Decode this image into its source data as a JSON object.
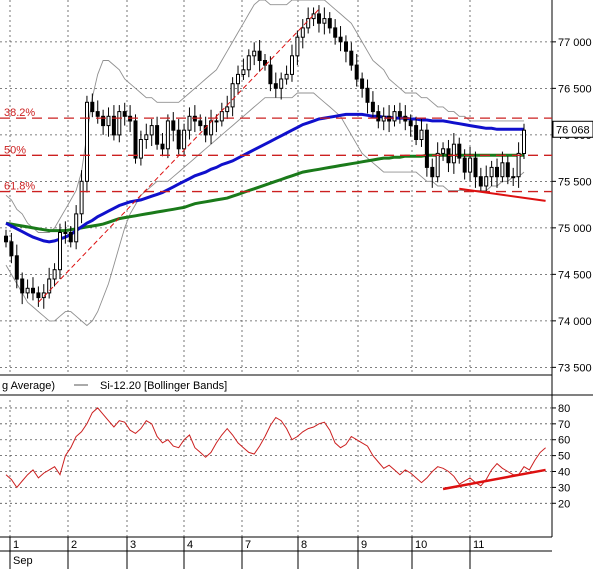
{
  "colors": {
    "price_bars": "#000000",
    "ma_short": "#1010cc",
    "ma_long": "#1a7a1a",
    "bollinger": "#909090",
    "fib_lines": "#cc2020",
    "rsi_line": "#cc2020",
    "trendlines": "#dd1010",
    "grid": "#555555",
    "last_price_box": "#ffffff"
  },
  "legend": [
    {
      "label": "g Average)",
      "style": "none"
    },
    {
      "label": "Si-12.20 [Bollinger Bands]",
      "style": "line"
    }
  ],
  "last_price_label": "76 068",
  "fib_labels": [
    {
      "label": "38.2%",
      "level": 76180
    },
    {
      "label": "50%",
      "level": 75780
    },
    {
      "label": "61.8%",
      "level": 75390
    }
  ],
  "x_axis": {
    "day_labels": [
      "1",
      "2",
      "3",
      "4",
      "7",
      "8",
      "9",
      "10",
      "11"
    ],
    "month_label": "Sep"
  },
  "chart_data": [
    {
      "type": "candlestick",
      "title": "",
      "series_name": "Si-12.20",
      "ylim": [
        73450,
        77450
      ],
      "y_ticks": [
        {
          "label": "77 000",
          "value": 77000
        },
        {
          "label": "76 500",
          "value": 76500
        },
        {
          "label": "76 000",
          "value": 76000
        },
        {
          "label": "75 500",
          "value": 75500
        },
        {
          "label": "75 000",
          "value": 75000
        },
        {
          "label": "74 500",
          "value": 74500
        },
        {
          "label": "74 000",
          "value": 74000
        },
        {
          "label": "73 500",
          "value": 73500
        }
      ],
      "grid": true,
      "legend_position": "bottom-left",
      "day_index": [
        0,
        1,
        2,
        3,
        4,
        5,
        6,
        7,
        8
      ],
      "close": [
        74850,
        74700,
        74450,
        74300,
        74350,
        74300,
        74250,
        74300,
        74450,
        74550,
        74950,
        74950,
        74850,
        75150,
        75500,
        76350,
        76250,
        76200,
        76100,
        76200,
        76000,
        76250,
        76200,
        76150,
        75750,
        75950,
        76000,
        76100,
        75900,
        75850,
        76150,
        76050,
        75850,
        76050,
        76200,
        76150,
        76100,
        76000,
        76150,
        76150,
        76250,
        76300,
        76550,
        76650,
        76700,
        76850,
        76900,
        76800,
        76750,
        76550,
        76500,
        76600,
        76650,
        76850,
        77050,
        77150,
        77250,
        77300,
        77200,
        77250,
        77150,
        77050,
        77000,
        76900,
        76750,
        76600,
        76500,
        76350,
        76250,
        76150,
        76200,
        76150,
        76250,
        76200,
        76150,
        76100,
        75950,
        76050,
        75650,
        75550,
        75800,
        75850,
        75700,
        75900,
        75750,
        75600,
        75750,
        75550,
        75450,
        75550,
        75650,
        75550,
        75700,
        75550,
        75550,
        75800,
        76050
      ],
      "ma_short": [
        75050,
        75020,
        74990,
        74960,
        74930,
        74900,
        74880,
        74860,
        74850,
        74860,
        74880,
        74900,
        74930,
        74970,
        75010,
        75050,
        75080,
        75120,
        75150,
        75180,
        75210,
        75240,
        75260,
        75280,
        75290,
        75300,
        75320,
        75340,
        75360,
        75380,
        75410,
        75440,
        75470,
        75500,
        75530,
        75560,
        75580,
        75600,
        75630,
        75650,
        75680,
        75700,
        75720,
        75750,
        75780,
        75810,
        75840,
        75870,
        75900,
        75930,
        75960,
        75990,
        76020,
        76050,
        76080,
        76110,
        76130,
        76150,
        76170,
        76180,
        76190,
        76200,
        76210,
        76220,
        76220,
        76220,
        76220,
        76210,
        76200,
        76200,
        76190,
        76190,
        76180,
        76180,
        76180,
        76170,
        76170,
        76160,
        76160,
        76150,
        76150,
        76150,
        76140,
        76130,
        76120,
        76110,
        76100,
        76090,
        76080,
        76070,
        76070,
        76060,
        76060,
        76060,
        76060,
        76060,
        76060
      ],
      "ma_long": [
        75050,
        75040,
        75030,
        75020,
        75010,
        75000,
        74990,
        74980,
        74970,
        74970,
        74970,
        74970,
        74980,
        74990,
        75000,
        75010,
        75020,
        75030,
        75040,
        75060,
        75080,
        75100,
        75110,
        75120,
        75130,
        75140,
        75150,
        75160,
        75170,
        75180,
        75190,
        75200,
        75210,
        75220,
        75240,
        75260,
        75270,
        75280,
        75290,
        75300,
        75310,
        75320,
        75340,
        75360,
        75380,
        75400,
        75420,
        75440,
        75460,
        75480,
        75500,
        75520,
        75540,
        75560,
        75580,
        75600,
        75610,
        75620,
        75630,
        75640,
        75650,
        75660,
        75670,
        75680,
        75690,
        75700,
        75710,
        75720,
        75730,
        75740,
        75750,
        75750,
        75760,
        75760,
        75770,
        75770,
        75770,
        75770,
        75780,
        75780,
        75780,
        75780,
        75780,
        75780,
        75780,
        75780,
        75780,
        75780,
        75780,
        75780,
        75780,
        75780,
        75780,
        75780,
        75780,
        75780,
        75780
      ],
      "bollinger_upper": [
        75350,
        75300,
        75200,
        75150,
        75050,
        75000,
        74950,
        74950,
        74950,
        75000,
        75100,
        75200,
        75300,
        75400,
        75600,
        76000,
        76400,
        76650,
        76800,
        76800,
        76750,
        76700,
        76600,
        76550,
        76500,
        76450,
        76400,
        76400,
        76350,
        76350,
        76350,
        76350,
        76350,
        76400,
        76450,
        76500,
        76550,
        76600,
        76650,
        76700,
        76800,
        76900,
        77000,
        77100,
        77200,
        77300,
        77400,
        77450,
        77450,
        77400,
        77400,
        77400,
        77400,
        77450,
        77450,
        77450,
        77450,
        77450,
        77450,
        77450,
        77400,
        77350,
        77300,
        77250,
        77200,
        77100,
        77000,
        76900,
        76800,
        76750,
        76700,
        76600,
        76550,
        76500,
        76450,
        76450,
        76450,
        76400,
        76400,
        76350,
        76300,
        76300,
        76250,
        76250,
        76200,
        76200,
        76150,
        76150,
        76150,
        76150,
        76150,
        76150,
        76150,
        76150,
        76150,
        76150,
        76150
      ],
      "bollinger_lower": [
        74600,
        74500,
        74400,
        74300,
        74200,
        74150,
        74100,
        74050,
        74000,
        74000,
        74050,
        74100,
        74100,
        74050,
        74000,
        73950,
        74000,
        74100,
        74250,
        74400,
        74600,
        74800,
        75000,
        75150,
        75250,
        75350,
        75400,
        75450,
        75500,
        75500,
        75500,
        75550,
        75600,
        75650,
        75700,
        75750,
        75800,
        75850,
        75900,
        75950,
        76000,
        76050,
        76100,
        76150,
        76200,
        76250,
        76300,
        76350,
        76400,
        76400,
        76400,
        76400,
        76400,
        76400,
        76450,
        76450,
        76450,
        76450,
        76400,
        76350,
        76300,
        76250,
        76200,
        76100,
        76000,
        75900,
        75800,
        75750,
        75700,
        75650,
        75600,
        75600,
        75600,
        75600,
        75600,
        75600,
        75600,
        75550,
        75500,
        75500,
        75450,
        75450,
        75400,
        75400,
        75400,
        75400,
        75400,
        75400,
        75400,
        75400,
        75450,
        75450,
        75500,
        75500,
        75550,
        75550,
        75600
      ],
      "support_trendline": [
        {
          "index": 84,
          "value": 75420
        },
        {
          "index": 100,
          "value": 75290
        }
      ],
      "upper_trendline": [
        {
          "index": 6,
          "value": 74200
        },
        {
          "index": 58,
          "value": 77350
        }
      ]
    },
    {
      "type": "line",
      "title": "",
      "series_name": "",
      "ylim": [
        12,
        85
      ],
      "y_ticks": [
        {
          "label": "80",
          "value": 80
        },
        {
          "label": "70",
          "value": 70
        },
        {
          "label": "60",
          "value": 60
        },
        {
          "label": "50",
          "value": 50
        },
        {
          "label": "40",
          "value": 40
        },
        {
          "label": "30",
          "value": 30
        },
        {
          "label": "20",
          "value": 20
        }
      ],
      "grid": true,
      "values": [
        38,
        35,
        30,
        34,
        38,
        41,
        36,
        39,
        41,
        43,
        38,
        50,
        55,
        62,
        65,
        70,
        77,
        80,
        76,
        72,
        68,
        72,
        71,
        66,
        64,
        67,
        72,
        70,
        62,
        58,
        60,
        56,
        55,
        60,
        63,
        55,
        52,
        49,
        52,
        58,
        63,
        67,
        63,
        58,
        55,
        52,
        51,
        56,
        62,
        69,
        74,
        72,
        67,
        60,
        62,
        65,
        67,
        68,
        70,
        71,
        66,
        58,
        55,
        57,
        62,
        60,
        58,
        56,
        50,
        46,
        42,
        44,
        41,
        38,
        41,
        39,
        36,
        33,
        36,
        40,
        43,
        42,
        40,
        37,
        32,
        34,
        36,
        33,
        31,
        35,
        41,
        45,
        42,
        40,
        38,
        38,
        43,
        41,
        47,
        52,
        55
      ],
      "trendline": [
        {
          "index": 81,
          "value": 29
        },
        {
          "index": 100,
          "value": 41
        }
      ]
    }
  ]
}
